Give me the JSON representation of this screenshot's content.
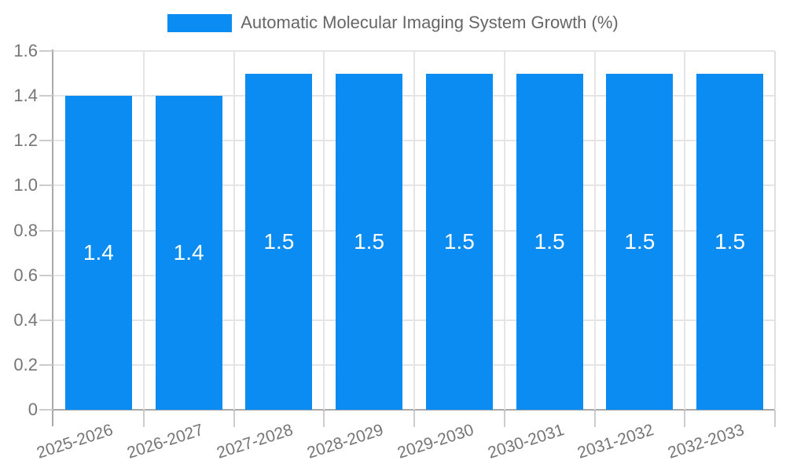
{
  "legend": {
    "label": "Automatic Molecular Imaging System Growth (%)"
  },
  "palette": {
    "bar": "#0A8CF2",
    "bar_label_text": "#FFFFFF",
    "grid": "#E5E5E5",
    "right_border": "#E0E0E0",
    "axis_line": "#A9A9A9",
    "tick": "#CCCCCC",
    "axis_text": "#757575",
    "legend_text": "#666666"
  },
  "chart_data": {
    "type": "bar",
    "title": "Automatic Molecular Imaging System Growth (%)",
    "categories": [
      "2025-2026",
      "2026-2027",
      "2027-2028",
      "2028-2029",
      "2029-2030",
      "2030-2031",
      "2031-2032",
      "2032-2033"
    ],
    "series": [
      {
        "name": "Automatic Molecular Imaging System Growth (%)",
        "values": [
          1.4,
          1.4,
          1.5,
          1.5,
          1.5,
          1.5,
          1.5,
          1.5
        ]
      }
    ],
    "bar_labels": [
      "1.4",
      "1.4",
      "1.5",
      "1.5",
      "1.5",
      "1.5",
      "1.5",
      "1.5"
    ],
    "xlabel": "",
    "ylabel": "",
    "ylim": [
      0,
      1.6
    ],
    "ytick_interval": 0.2,
    "ytick_labels": [
      "0",
      "0.2",
      "0.4",
      "0.6",
      "0.8",
      "1.0",
      "1.2",
      "1.4",
      "1.6"
    ],
    "grid": true,
    "legend_position": "top",
    "x_labels_rotated": true
  }
}
